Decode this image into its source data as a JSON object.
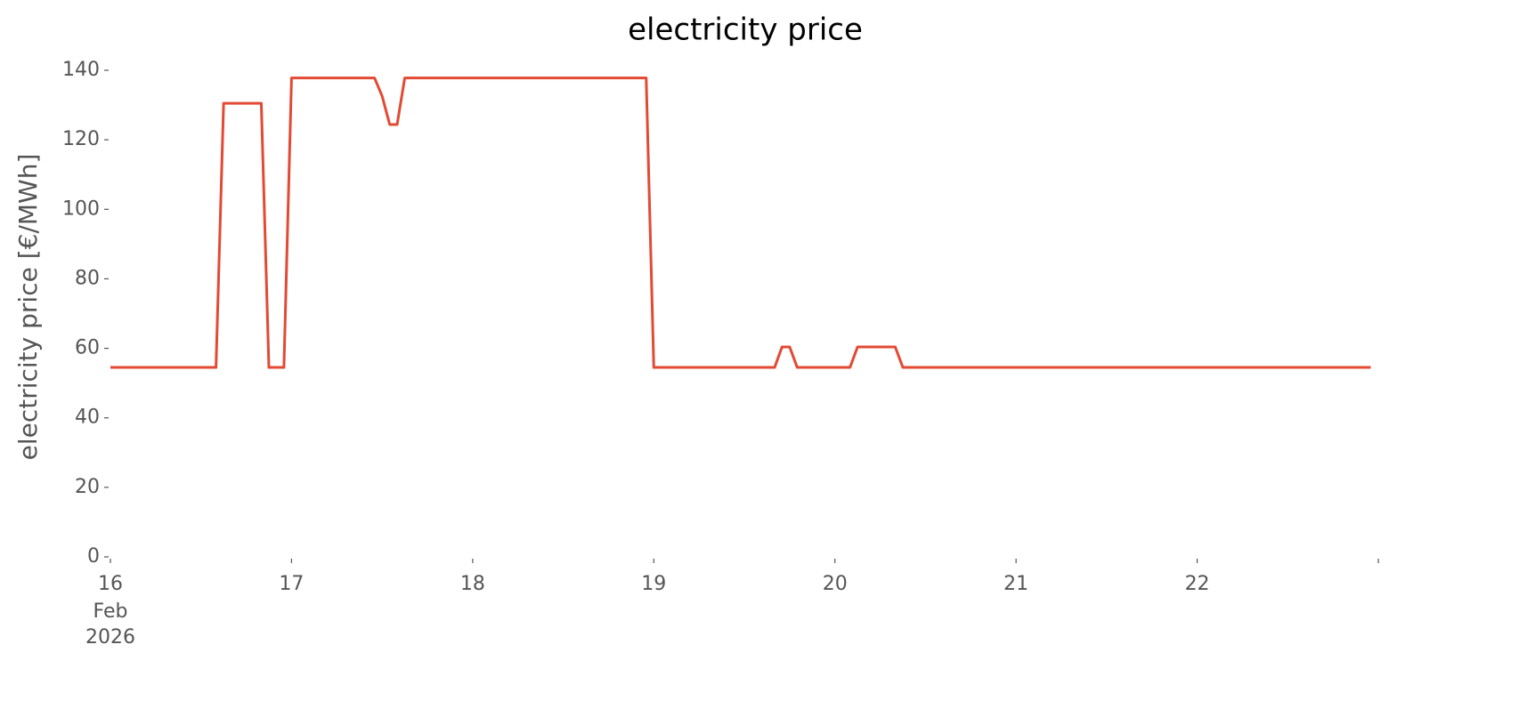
{
  "chart_data": {
    "type": "line",
    "title": "electricity price",
    "ylabel": "electricity price [€/MWh]",
    "x": [
      16.0,
      16.583,
      16.625,
      16.833,
      16.875,
      16.958,
      17.0,
      17.458,
      17.5,
      17.542,
      17.583,
      17.625,
      18.958,
      19.0,
      19.667,
      19.708,
      19.75,
      19.792,
      20.083,
      20.125,
      20.333,
      20.375,
      22.958
    ],
    "values": [
      54.5,
      54.5,
      130.5,
      130.5,
      54.5,
      54.5,
      137.8,
      137.8,
      132.6,
      124.4,
      124.4,
      137.8,
      137.8,
      54.5,
      54.5,
      60.4,
      60.4,
      54.5,
      54.5,
      60.4,
      60.4,
      54.5,
      54.5
    ],
    "color": "#e24a33",
    "xlim": [
      16,
      23
    ],
    "xticks": [
      16,
      17,
      18,
      19,
      20,
      21,
      22,
      {
        "value": 23,
        "label": null
      }
    ],
    "x_date_lines": [
      "Feb",
      "2026"
    ],
    "ylim": [
      0,
      140
    ],
    "yticks": [
      0,
      20,
      40,
      60,
      80,
      100,
      120,
      140
    ],
    "grid": false
  }
}
